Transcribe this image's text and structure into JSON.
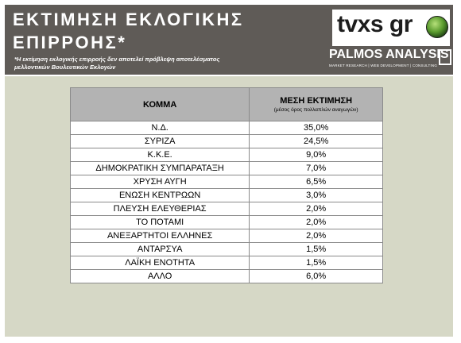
{
  "header": {
    "title_line1": "ΕΚΤΙΜΗΣΗ ΕΚΛΟΓΙΚΗΣ",
    "title_line2": "ΕΠΙΡΡΟΗΣ*",
    "note_line1": "*Η εκτίμηση εκλογικής επιρροής δεν αποτελεί πρόβλεψη αποτελέσματος",
    "note_line2": "μελλοντικών Βουλευτικών Εκλογών",
    "logo_tvxs": "tvxs gr",
    "logo_palmos": "PALMOS ANALYSIS",
    "logo_palmos_tag": "MARKET RESEARCH | WEB DEVELOPMENT | CONSULTING"
  },
  "colors": {
    "header_bg": "#5f5b57",
    "panel_bg": "#d6d8c6",
    "table_header_bg": "#b3b3b3"
  },
  "chart_data": {
    "type": "table",
    "columns": [
      "ΚΟΜΜΑ",
      "ΜΕΣΗ ΕΚΤΙΜΗΣΗ"
    ],
    "column_sub": "(μέσος όρος πολλαπλών αναγωγών)",
    "rows": [
      {
        "party": "Ν.Δ.",
        "value": "35,0%"
      },
      {
        "party": "ΣΥΡΙΖΑ",
        "value": "24,5%"
      },
      {
        "party": "Κ.Κ.Ε.",
        "value": "9,0%"
      },
      {
        "party": "ΔΗΜΟΚΡΑΤΙΚΗ ΣΥΜΠΑΡΑΤΑΞΗ",
        "value": "7,0%"
      },
      {
        "party": "ΧΡΥΣΗ ΑΥΓΗ",
        "value": "6,5%"
      },
      {
        "party": "ΕΝΩΣΗ ΚΕΝΤΡΩΩΝ",
        "value": "3,0%"
      },
      {
        "party": "ΠΛΕΥΣΗ ΕΛΕΥΘΕΡΙΑΣ",
        "value": "2,0%"
      },
      {
        "party": "ΤΟ ΠΟΤΑΜΙ",
        "value": "2,0%"
      },
      {
        "party": "ΑΝΕΞΑΡΤΗΤΟΙ ΕΛΛΗΝΕΣ",
        "value": "2,0%"
      },
      {
        "party": "ΑΝΤΑΡΣΥΑ",
        "value": "1,5%"
      },
      {
        "party": "ΛΑΪΚΗ ΕΝΟΤΗΤΑ",
        "value": "1,5%"
      },
      {
        "party": "ΑΛΛΟ",
        "value": "6,0%"
      }
    ]
  }
}
